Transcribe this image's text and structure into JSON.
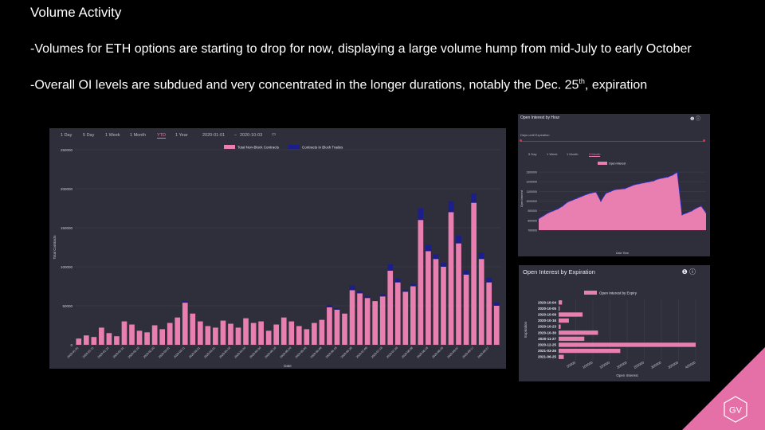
{
  "slide": {
    "title": "Volume Activity",
    "bullet1": "-Volumes for ETH options are starting to drop for now, displaying a large volume hump from mid-July to early October",
    "bullet2_pre": "-Overall OI levels are subdued and very concentrated in the longer durations, notably the Dec. 25",
    "bullet2_sup": "th",
    "bullet2_post": ", expiration"
  },
  "logo": {
    "text": "GV",
    "color": "#e56fa7"
  },
  "main_chart": {
    "toolbar": {
      "buttons": [
        "1 Day",
        "5 Day",
        "1 Week",
        "1 Month",
        "YTD",
        "1 Year"
      ],
      "selected": "YTD",
      "date_from": "2020-01-01",
      "date_to": "2020-10-03",
      "calendar_icon": "calendar-icon"
    },
    "colors": {
      "non_block": "#e87fb0",
      "block": "#1c1e8c"
    }
  },
  "oi_hour": {
    "title": "Open Interest by Hour",
    "days_label": "Days until Expiration",
    "toolbar": {
      "buttons": [
        "5 Day",
        "1 Week",
        "1 Month",
        "3 Month"
      ],
      "selected": "3 Month"
    },
    "help_icons": "❶ ⓘ"
  },
  "oi_exp": {
    "title": "Open Interest by Expiration",
    "help_icons": "❶ ⓘ"
  },
  "chart_data": [
    {
      "type": "bar",
      "stacked": true,
      "xlabel": "Date",
      "ylabel": "Total Contracts",
      "ylim": [
        0,
        250000
      ],
      "yticks": [
        0,
        50000,
        100000,
        150000,
        200000,
        250000
      ],
      "legend_position": "top-center",
      "grid": true,
      "categories": [
        "2020-01-01",
        "2020-01-06",
        "2020-01-11",
        "2020-01-16",
        "2020-01-21",
        "2020-01-26",
        "2020-01-31",
        "2020-02-05",
        "2020-02-10",
        "2020-02-15",
        "2020-02-20",
        "2020-02-25",
        "2020-03-01",
        "2020-03-06",
        "2020-03-11",
        "2020-03-16",
        "2020-03-21",
        "2020-03-26",
        "2020-03-31",
        "2020-04-05",
        "2020-04-10",
        "2020-04-15",
        "2020-04-20",
        "2020-04-25",
        "2020-04-30",
        "2020-05-05",
        "2020-05-10",
        "2020-05-15",
        "2020-05-20",
        "2020-05-25",
        "2020-05-30",
        "2020-06-04",
        "2020-06-09",
        "2020-06-14",
        "2020-06-19",
        "2020-06-24",
        "2020-06-29",
        "2020-07-04",
        "2020-07-09",
        "2020-07-14",
        "2020-07-19",
        "2020-07-24",
        "2020-07-29",
        "2020-08-03",
        "2020-08-08",
        "2020-08-13",
        "2020-08-18",
        "2020-08-23",
        "2020-08-28",
        "2020-09-02",
        "2020-09-07",
        "2020-09-12",
        "2020-09-17",
        "2020-09-22",
        "2020-09-27",
        "2020-10-02"
      ],
      "series": [
        {
          "name": "Total Non-Block Contracts",
          "values": [
            8000,
            12000,
            10000,
            22000,
            15000,
            11000,
            30000,
            26000,
            18000,
            16000,
            25000,
            20000,
            28000,
            35000,
            54000,
            40000,
            30000,
            24000,
            22000,
            31000,
            27000,
            22000,
            34000,
            28000,
            30000,
            18000,
            26000,
            35000,
            30000,
            24000,
            20000,
            28000,
            32000,
            48000,
            45000,
            40000,
            70000,
            66000,
            60000,
            56000,
            62000,
            95000,
            80000,
            68000,
            75000,
            160000,
            120000,
            110000,
            100000,
            170000,
            130000,
            90000,
            182000,
            110000,
            80000,
            50000
          ]
        },
        {
          "name": "Contracts in Block Trades",
          "values": [
            0,
            0,
            0,
            0,
            0,
            0,
            0,
            0,
            0,
            0,
            0,
            0,
            0,
            0,
            2000,
            0,
            0,
            0,
            0,
            0,
            0,
            0,
            0,
            0,
            0,
            0,
            0,
            0,
            0,
            0,
            0,
            0,
            0,
            3000,
            2000,
            0,
            6000,
            3000,
            2000,
            0,
            3000,
            8000,
            5000,
            2000,
            3000,
            15000,
            8000,
            6000,
            5000,
            14000,
            10000,
            5000,
            12000,
            8000,
            6000,
            4000
          ]
        }
      ]
    },
    {
      "type": "area",
      "xlabel": "Date Time",
      "ylabel": "Open Interest",
      "ylim": [
        700000,
        1350000
      ],
      "yticks": [
        700000,
        800000,
        900000,
        1000000,
        1100000,
        1200000,
        1300000
      ],
      "legend_position": "top-center",
      "series": [
        {
          "name": "Open Interest",
          "values": [
            820000,
            850000,
            880000,
            900000,
            920000,
            950000,
            990000,
            1010000,
            1030000,
            1050000,
            1070000,
            1085000,
            1095000,
            1000000,
            1080000,
            1100000,
            1120000,
            1125000,
            1130000,
            1150000,
            1170000,
            1180000,
            1190000,
            1200000,
            1210000,
            1230000,
            1240000,
            1250000,
            1270000,
            1300000,
            860000,
            880000,
            900000,
            930000,
            950000,
            880000
          ]
        }
      ]
    },
    {
      "type": "bar",
      "orientation": "horizontal",
      "xlabel": "Open Interest",
      "ylabel": "Expiration",
      "xlim": [
        0,
        400000
      ],
      "xticks": [
        50000,
        100000,
        150000,
        200000,
        250000,
        300000,
        350000,
        400000
      ],
      "legend_position": "top-center",
      "categories": [
        "2020-10-04",
        "2020-10-05",
        "2020-10-09",
        "2020-10-16",
        "2020-10-23",
        "2020-10-30",
        "2020-11-27",
        "2020-12-25",
        "2021-03-26",
        "2021-06-25"
      ],
      "series": [
        {
          "name": "Open Interest by Expiry",
          "values": [
            10000,
            3000,
            70000,
            30000,
            6000,
            115000,
            75000,
            400000,
            180000,
            15000
          ]
        }
      ]
    }
  ]
}
